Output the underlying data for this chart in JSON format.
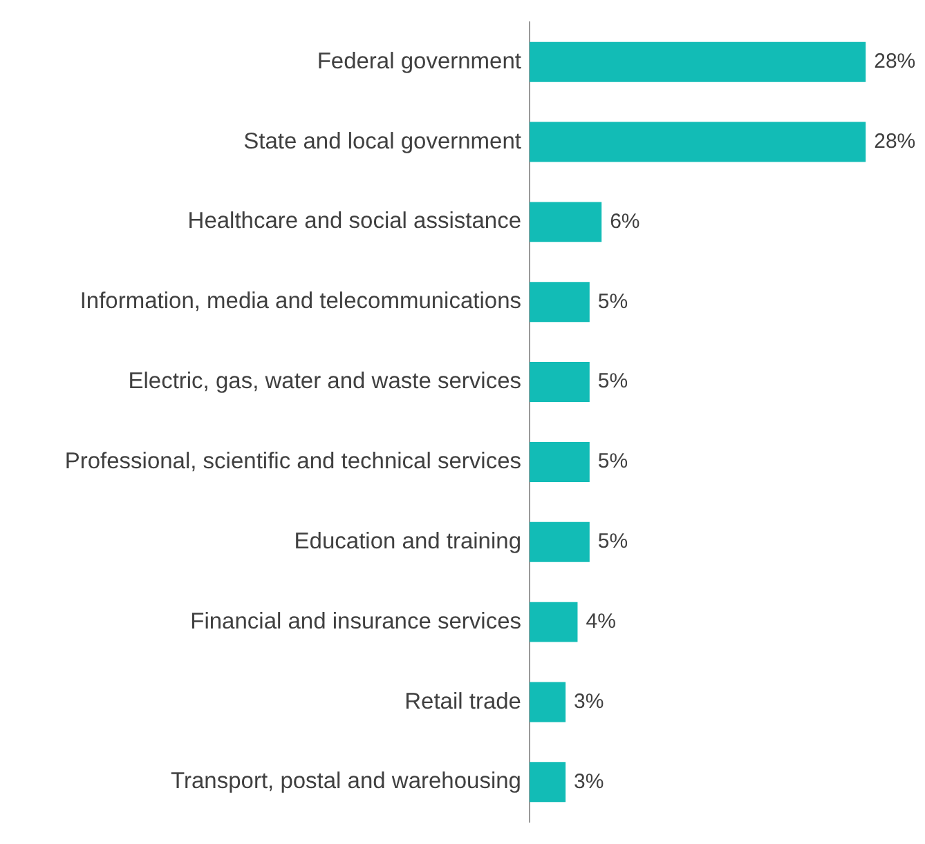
{
  "chart_data": {
    "type": "bar",
    "orientation": "horizontal",
    "categories": [
      "Federal government",
      "State and local government",
      "Healthcare and social assistance",
      "Information, media and telecommunications",
      "Electric, gas, water and waste services",
      "Professional, scientific and technical services",
      "Education and training",
      "Financial and insurance services",
      "Retail trade",
      "Transport, postal and warehousing"
    ],
    "values": [
      28,
      28,
      6,
      5,
      5,
      5,
      5,
      4,
      3,
      3
    ],
    "value_labels": [
      "28%",
      "28%",
      "6%",
      "5%",
      "5%",
      "5%",
      "5%",
      "4%",
      "3%",
      "3%"
    ],
    "color": "#12bcb6",
    "tick_labels": "y",
    "legend": false
  }
}
